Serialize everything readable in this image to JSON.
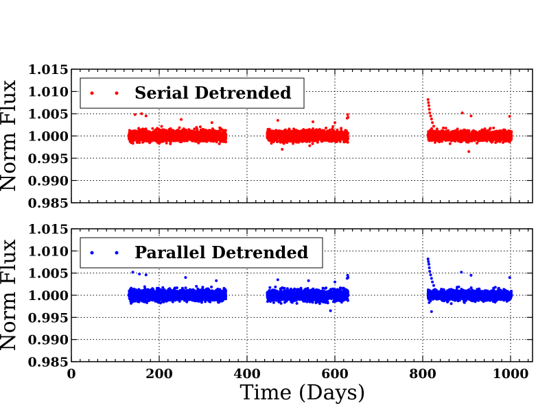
{
  "chart_data": [
    {
      "type": "scatter",
      "panel": "top",
      "legend_position": "top-left",
      "grid": true,
      "xlim": [
        0,
        1050
      ],
      "ylim": [
        0.985,
        1.015
      ],
      "xlabel": "",
      "ylabel": "Norm Flux",
      "y_tick_labels": [
        "0.985",
        "0.990",
        "0.995",
        "1.000",
        "1.005",
        "1.010",
        "1.015"
      ],
      "y_ticks": [
        0.985,
        0.99,
        0.995,
        1.0,
        1.005,
        1.01,
        1.015
      ],
      "x_ticks": [
        0,
        200,
        400,
        600,
        800,
        1000
      ],
      "x_tick_labels": [],
      "series": [
        {
          "name": "Serial Detrended",
          "color": "#ff0000",
          "segments": [
            {
              "x_start": 131,
              "x_end": 352,
              "center": 1.0,
              "spread": 0.0011
            },
            {
              "x_start": 446,
              "x_end": 630,
              "center": 1.0,
              "spread": 0.0011
            },
            {
              "x_start": 812,
              "x_end": 1002,
              "center": 1.0,
              "spread": 0.001
            }
          ],
          "outliers": [
            {
              "x": 145,
              "y": 1.0048
            },
            {
              "x": 160,
              "y": 1.005
            },
            {
              "x": 170,
              "y": 1.0045
            },
            {
              "x": 250,
              "y": 1.0037
            },
            {
              "x": 320,
              "y": 1.003
            },
            {
              "x": 470,
              "y": 1.0035
            },
            {
              "x": 550,
              "y": 1.0032
            },
            {
              "x": 600,
              "y": 1.003
            },
            {
              "x": 628,
              "y": 1.004
            },
            {
              "x": 629,
              "y": 1.0048
            },
            {
              "x": 630,
              "y": 1.0042
            },
            {
              "x": 812,
              "y": 1.0082
            },
            {
              "x": 813,
              "y": 1.0075
            },
            {
              "x": 814,
              "y": 1.0068
            },
            {
              "x": 815,
              "y": 1.006
            },
            {
              "x": 816,
              "y": 1.0052
            },
            {
              "x": 818,
              "y": 1.0045
            },
            {
              "x": 820,
              "y": 1.0038
            },
            {
              "x": 822,
              "y": 1.003
            },
            {
              "x": 825,
              "y": 1.0022
            },
            {
              "x": 890,
              "y": 1.0052
            },
            {
              "x": 910,
              "y": 1.0045
            },
            {
              "x": 998,
              "y": 1.0044
            },
            {
              "x": 905,
              "y": 0.9965
            },
            {
              "x": 480,
              "y": 0.997
            }
          ]
        }
      ]
    },
    {
      "type": "scatter",
      "panel": "bottom",
      "legend_position": "top-left",
      "grid": true,
      "xlim": [
        0,
        1050
      ],
      "ylim": [
        0.985,
        1.015
      ],
      "xlabel": "Time (Days)",
      "ylabel": "Norm Flux",
      "y_tick_labels": [
        "0.985",
        "0.990",
        "0.995",
        "1.000",
        "1.005",
        "1.010",
        "1.015"
      ],
      "y_ticks": [
        0.985,
        0.99,
        0.995,
        1.0,
        1.005,
        1.01,
        1.015
      ],
      "x_ticks": [
        0,
        200,
        400,
        600,
        800,
        1000
      ],
      "x_tick_labels": [
        "0",
        "200",
        "400",
        "600",
        "800",
        "1000"
      ],
      "series": [
        {
          "name": "Parallel Detrended",
          "color": "#0000ff",
          "segments": [
            {
              "x_start": 131,
              "x_end": 352,
              "center": 1.0,
              "spread": 0.0011
            },
            {
              "x_start": 446,
              "x_end": 630,
              "center": 1.0,
              "spread": 0.0011
            },
            {
              "x_start": 812,
              "x_end": 1002,
              "center": 1.0,
              "spread": 0.001
            }
          ],
          "outliers": [
            {
              "x": 140,
              "y": 1.0052
            },
            {
              "x": 155,
              "y": 1.0048
            },
            {
              "x": 170,
              "y": 1.0046
            },
            {
              "x": 260,
              "y": 1.004
            },
            {
              "x": 330,
              "y": 1.0033
            },
            {
              "x": 470,
              "y": 1.0035
            },
            {
              "x": 540,
              "y": 1.0033
            },
            {
              "x": 600,
              "y": 1.003
            },
            {
              "x": 628,
              "y": 1.0038
            },
            {
              "x": 629,
              "y": 1.0045
            },
            {
              "x": 630,
              "y": 1.004
            },
            {
              "x": 812,
              "y": 1.0082
            },
            {
              "x": 813,
              "y": 1.0076
            },
            {
              "x": 814,
              "y": 1.007
            },
            {
              "x": 815,
              "y": 1.0062
            },
            {
              "x": 816,
              "y": 1.0054
            },
            {
              "x": 818,
              "y": 1.0046
            },
            {
              "x": 820,
              "y": 1.0038
            },
            {
              "x": 822,
              "y": 1.003
            },
            {
              "x": 825,
              "y": 1.0022
            },
            {
              "x": 888,
              "y": 1.0052
            },
            {
              "x": 910,
              "y": 1.0045
            },
            {
              "x": 998,
              "y": 1.004
            },
            {
              "x": 820,
              "y": 0.9963
            },
            {
              "x": 590,
              "y": 0.9965
            }
          ]
        }
      ]
    }
  ]
}
